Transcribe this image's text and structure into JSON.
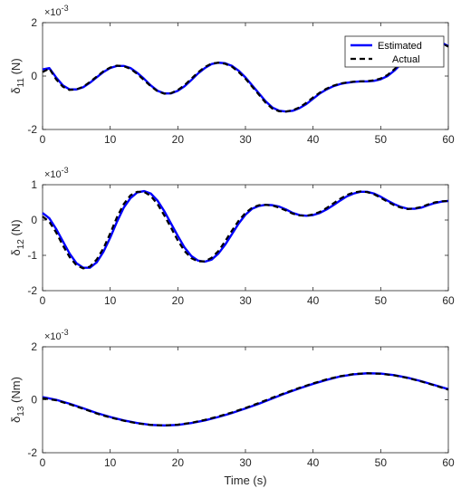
{
  "colors": {
    "estimated": "#0000ff",
    "actual": "#000000",
    "axis": "#262626"
  },
  "legend": {
    "placement": "top-right",
    "entries": [
      "Estimated",
      "Actual"
    ]
  },
  "chart_data": [
    {
      "type": "line",
      "ylabel_main": "δ",
      "ylabel_sub": "11",
      "ylabel_unit": " (N)",
      "exponent_label": "×10",
      "exponent_power": "-3",
      "xlim": [
        0,
        60
      ],
      "ylim": [
        -2,
        2
      ],
      "xticks": [
        "0",
        "10",
        "20",
        "30",
        "40",
        "50",
        "60"
      ],
      "yticks": [
        "-2",
        "0",
        "2"
      ],
      "ytick_values": [
        -2,
        0,
        2
      ],
      "has_legend": true,
      "x": [
        0,
        1,
        2,
        3,
        4,
        5,
        6,
        7,
        8,
        9,
        10,
        11,
        12,
        13,
        14,
        15,
        16,
        17,
        18,
        19,
        20,
        21,
        22,
        23,
        24,
        25,
        26,
        27,
        28,
        29,
        30,
        31,
        32,
        33,
        34,
        35,
        36,
        37,
        38,
        39,
        40,
        41,
        42,
        43,
        44,
        45,
        46,
        47,
        48,
        49,
        50,
        51,
        52,
        53,
        54,
        55,
        56,
        57,
        58,
        59,
        60
      ],
      "series": [
        {
          "name": "Estimated",
          "values": [
            0.25,
            0.3,
            -0.05,
            -0.35,
            -0.5,
            -0.5,
            -0.42,
            -0.25,
            -0.05,
            0.15,
            0.3,
            0.38,
            0.38,
            0.3,
            0.12,
            -0.1,
            -0.35,
            -0.55,
            -0.65,
            -0.65,
            -0.55,
            -0.38,
            -0.15,
            0.1,
            0.3,
            0.45,
            0.5,
            0.48,
            0.38,
            0.2,
            -0.05,
            -0.35,
            -0.65,
            -0.95,
            -1.18,
            -1.3,
            -1.33,
            -1.3,
            -1.2,
            -1.05,
            -0.85,
            -0.65,
            -0.5,
            -0.38,
            -0.3,
            -0.25,
            -0.22,
            -0.2,
            -0.2,
            -0.18,
            -0.12,
            0.0,
            0.2,
            0.45,
            0.72,
            0.95,
            1.13,
            1.25,
            1.3,
            1.25,
            1.12
          ]
        },
        {
          "name": "Actual",
          "values": [
            0.15,
            0.28,
            -0.12,
            -0.4,
            -0.52,
            -0.5,
            -0.4,
            -0.22,
            -0.02,
            0.18,
            0.32,
            0.39,
            0.37,
            0.27,
            0.08,
            -0.15,
            -0.38,
            -0.57,
            -0.66,
            -0.64,
            -0.52,
            -0.34,
            -0.1,
            0.14,
            0.34,
            0.47,
            0.5,
            0.46,
            0.35,
            0.15,
            -0.1,
            -0.4,
            -0.7,
            -1.0,
            -1.22,
            -1.32,
            -1.33,
            -1.28,
            -1.17,
            -1.0,
            -0.8,
            -0.62,
            -0.47,
            -0.36,
            -0.28,
            -0.24,
            -0.21,
            -0.2,
            -0.19,
            -0.16,
            -0.09,
            0.04,
            0.25,
            0.5,
            0.76,
            0.98,
            1.15,
            1.26,
            1.3,
            1.24,
            1.1
          ]
        }
      ]
    },
    {
      "type": "line",
      "ylabel_main": "δ",
      "ylabel_sub": "12",
      "ylabel_unit": " (N)",
      "exponent_label": "×10",
      "exponent_power": "-3",
      "xlim": [
        0,
        60
      ],
      "ylim": [
        -2,
        1
      ],
      "xticks": [
        "0",
        "10",
        "20",
        "30",
        "40",
        "50",
        "60"
      ],
      "yticks": [
        "-2",
        "-1",
        "0",
        "1"
      ],
      "ytick_values": [
        -2,
        -1,
        0,
        1
      ],
      "has_legend": false,
      "x": [
        0,
        1,
        2,
        3,
        4,
        5,
        6,
        7,
        8,
        9,
        10,
        11,
        12,
        13,
        14,
        15,
        16,
        17,
        18,
        19,
        20,
        21,
        22,
        23,
        24,
        25,
        26,
        27,
        28,
        29,
        30,
        31,
        32,
        33,
        34,
        35,
        36,
        37,
        38,
        39,
        40,
        41,
        42,
        43,
        44,
        45,
        46,
        47,
        48,
        49,
        50,
        51,
        52,
        53,
        54,
        55,
        56,
        57,
        58,
        59,
        60
      ],
      "series": [
        {
          "name": "Estimated",
          "values": [
            0.2,
            0.05,
            -0.25,
            -0.6,
            -0.95,
            -1.22,
            -1.35,
            -1.35,
            -1.2,
            -0.9,
            -0.5,
            -0.05,
            0.35,
            0.62,
            0.78,
            0.82,
            0.75,
            0.55,
            0.25,
            -0.1,
            -0.45,
            -0.78,
            -1.02,
            -1.15,
            -1.18,
            -1.12,
            -0.95,
            -0.7,
            -0.4,
            -0.1,
            0.15,
            0.32,
            0.4,
            0.43,
            0.42,
            0.38,
            0.3,
            0.2,
            0.14,
            0.12,
            0.14,
            0.2,
            0.3,
            0.42,
            0.55,
            0.67,
            0.75,
            0.8,
            0.8,
            0.75,
            0.66,
            0.55,
            0.45,
            0.37,
            0.32,
            0.32,
            0.35,
            0.42,
            0.48,
            0.52,
            0.54
          ]
        },
        {
          "name": "Actual",
          "values": [
            0.1,
            -0.05,
            -0.35,
            -0.72,
            -1.05,
            -1.28,
            -1.37,
            -1.32,
            -1.12,
            -0.8,
            -0.38,
            0.08,
            0.45,
            0.7,
            0.8,
            0.8,
            0.68,
            0.45,
            0.13,
            -0.22,
            -0.58,
            -0.88,
            -1.08,
            -1.17,
            -1.17,
            -1.07,
            -0.88,
            -0.6,
            -0.3,
            -0.02,
            0.2,
            0.35,
            0.42,
            0.43,
            0.41,
            0.35,
            0.27,
            0.18,
            0.13,
            0.12,
            0.16,
            0.23,
            0.34,
            0.47,
            0.6,
            0.71,
            0.78,
            0.81,
            0.79,
            0.73,
            0.63,
            0.52,
            0.42,
            0.35,
            0.31,
            0.33,
            0.37,
            0.44,
            0.5,
            0.53,
            0.54
          ]
        }
      ]
    },
    {
      "type": "line",
      "ylabel_main": "δ",
      "ylabel_sub": "13",
      "ylabel_unit": " (Nm)",
      "exponent_label": "×10",
      "exponent_power": "-3",
      "xlabel": "Time (s)",
      "xlim": [
        0,
        60
      ],
      "ylim": [
        -2,
        2
      ],
      "xticks": [
        "0",
        "10",
        "20",
        "30",
        "40",
        "50",
        "60"
      ],
      "yticks": [
        "-2",
        "0",
        "2"
      ],
      "ytick_values": [
        -2,
        0,
        2
      ],
      "has_legend": false,
      "x": [
        0,
        2,
        4,
        6,
        8,
        10,
        12,
        14,
        16,
        18,
        20,
        22,
        24,
        26,
        28,
        30,
        32,
        34,
        36,
        38,
        40,
        42,
        44,
        46,
        48,
        50,
        52,
        54,
        56,
        58,
        60
      ],
      "series": [
        {
          "name": "Estimated",
          "values": [
            0.1,
            0.0,
            -0.15,
            -0.32,
            -0.5,
            -0.65,
            -0.78,
            -0.88,
            -0.95,
            -0.97,
            -0.95,
            -0.88,
            -0.78,
            -0.65,
            -0.5,
            -0.33,
            -0.15,
            0.05,
            0.25,
            0.43,
            0.6,
            0.75,
            0.88,
            0.96,
            1.0,
            0.99,
            0.93,
            0.83,
            0.7,
            0.55,
            0.4
          ]
        },
        {
          "name": "Actual",
          "values": [
            0.06,
            -0.02,
            -0.17,
            -0.34,
            -0.52,
            -0.67,
            -0.79,
            -0.89,
            -0.95,
            -0.97,
            -0.94,
            -0.87,
            -0.76,
            -0.63,
            -0.48,
            -0.31,
            -0.12,
            0.08,
            0.27,
            0.45,
            0.62,
            0.77,
            0.89,
            0.97,
            1.0,
            0.98,
            0.92,
            0.82,
            0.69,
            0.54,
            0.38
          ]
        }
      ]
    }
  ]
}
